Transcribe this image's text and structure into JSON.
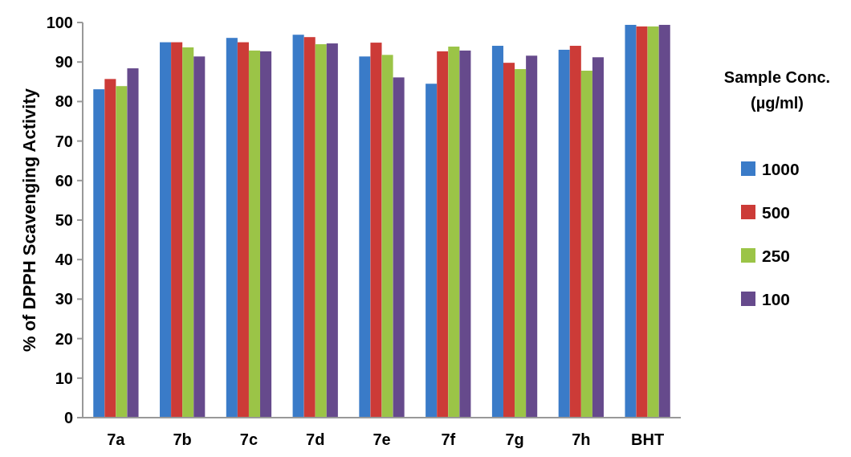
{
  "chart_data": {
    "type": "bar",
    "ylabel": "% of DPPH Scavenging Activity",
    "legend_title": "Sample Conc. (µg/ml)",
    "categories": [
      "7a",
      "7b",
      "7c",
      "7d",
      "7e",
      "7f",
      "7g",
      "7h",
      "BHT"
    ],
    "series": [
      {
        "name": "1000",
        "color": "#3a7bc8",
        "values": [
          83.1,
          95,
          96.1,
          96.9,
          91.4,
          84.5,
          94.1,
          93.1,
          99.4
        ]
      },
      {
        "name": "500",
        "color": "#cc3b37",
        "values": [
          85.7,
          95,
          95,
          96.3,
          94.9,
          92.7,
          89.8,
          94.1,
          99
        ]
      },
      {
        "name": "250",
        "color": "#9bc447",
        "values": [
          83.9,
          93.7,
          92.9,
          94.5,
          91.8,
          93.9,
          88.2,
          87.8,
          99
        ]
      },
      {
        "name": "100",
        "color": "#664a8c",
        "values": [
          88.4,
          91.4,
          92.7,
          94.7,
          86.1,
          92.9,
          91.6,
          91.2,
          99.4
        ]
      }
    ],
    "ylim": [
      0,
      100
    ],
    "yticks": [
      0,
      10,
      20,
      30,
      40,
      50,
      60,
      70,
      80,
      90,
      100
    ],
    "grid": false,
    "legend": "right"
  }
}
